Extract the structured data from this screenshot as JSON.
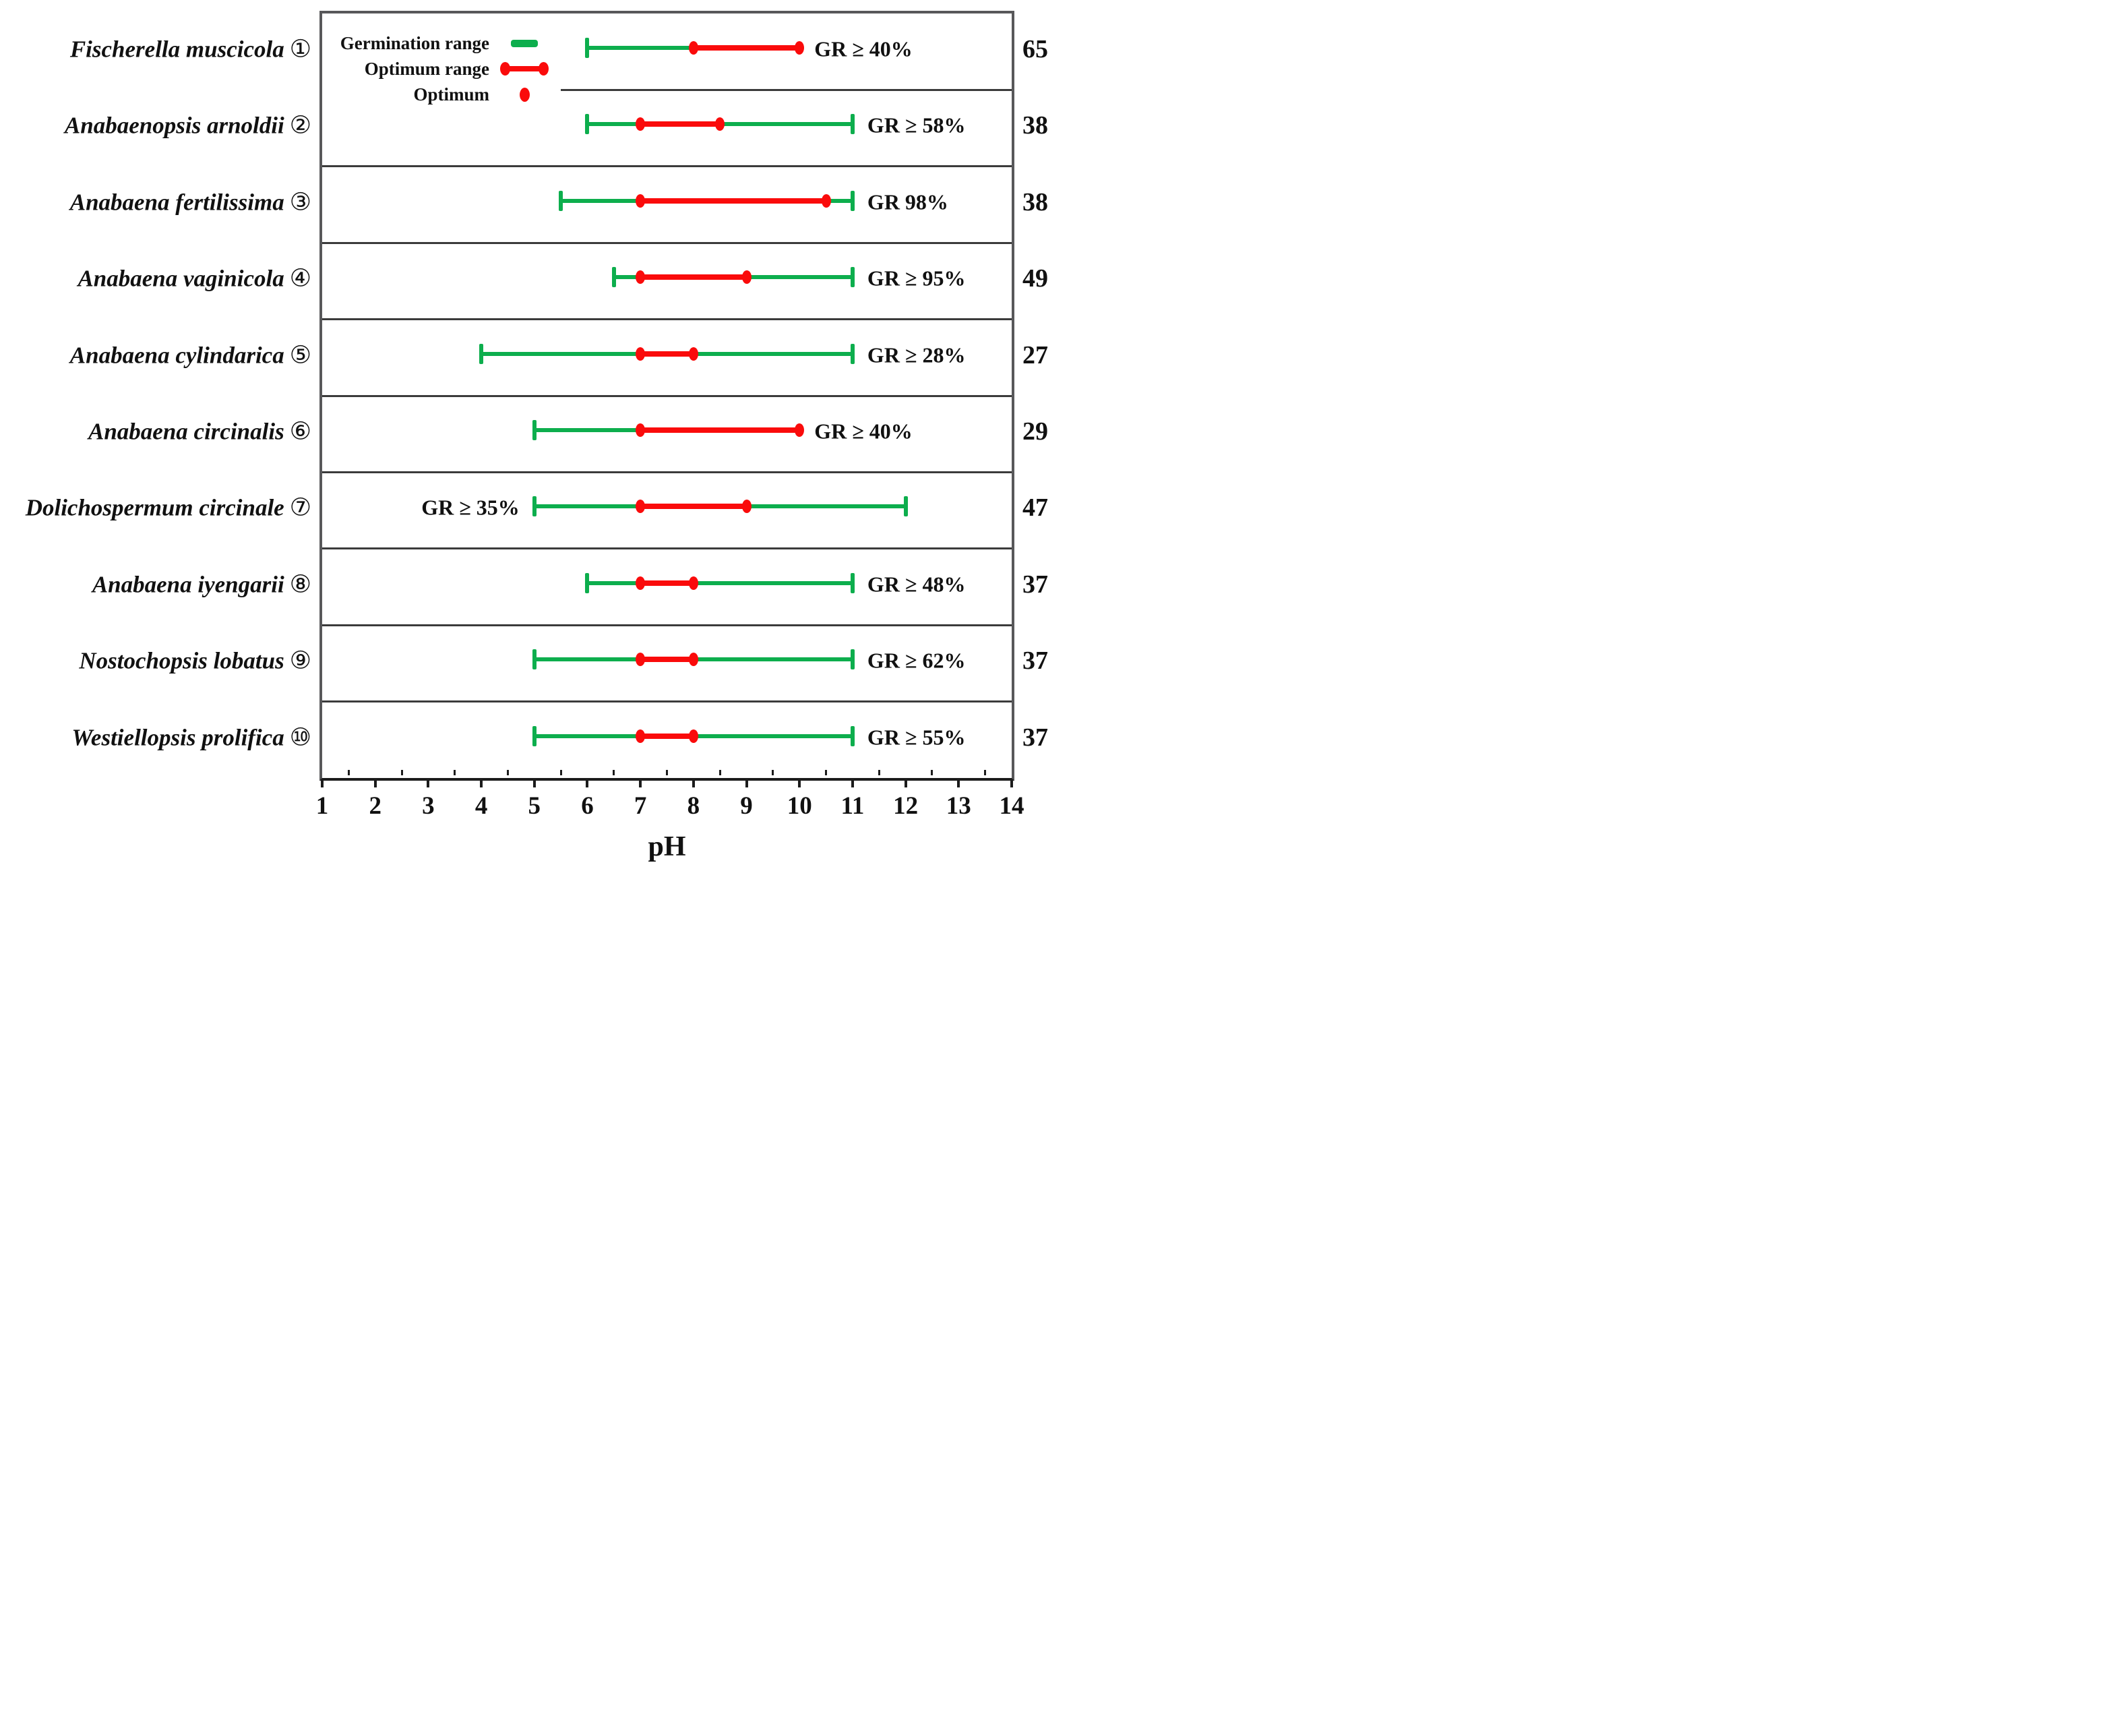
{
  "chart_data": {
    "type": "range_bar",
    "title": "",
    "xlabel": "pH",
    "x_axis": {
      "min": 1,
      "max": 14,
      "major_ticks": [
        1,
        2,
        3,
        4,
        5,
        6,
        7,
        8,
        9,
        10,
        11,
        12,
        13,
        14
      ],
      "minor_tick_step": 0.5,
      "grid": false
    },
    "legend": {
      "position": "top-left-inside",
      "items": [
        {
          "label": "Germination range",
          "swatch": "green-bar"
        },
        {
          "label": "Optimum range",
          "swatch": "red-range"
        },
        {
          "label": "Optimum",
          "swatch": "red-dot"
        }
      ]
    },
    "colors": {
      "germination_range": "#0DAE4D",
      "optimum_range": "#FA0B0B",
      "axis": "#1c1c1c",
      "separator": "#3b3b3b",
      "border": "#58585a"
    },
    "series": [
      {
        "species": "Fischerella muscicola",
        "number_glyph": "①",
        "germination_range": [
          6,
          10
        ],
        "optimum_range": [
          8,
          10
        ],
        "gr_label": "GR ≥ 40%",
        "gr_label_side": "right",
        "right_value": "65"
      },
      {
        "species": "Anabaenopsis arnoldii",
        "number_glyph": "②",
        "germination_range": [
          6,
          11
        ],
        "optimum_range": [
          7,
          8.5
        ],
        "gr_label": "GR ≥ 58%",
        "gr_label_side": "right",
        "right_value": "38"
      },
      {
        "species": "Anabaena fertilissima",
        "number_glyph": "③",
        "germination_range": [
          5.5,
          11
        ],
        "optimum_range": [
          7,
          10.5
        ],
        "gr_label": "GR 98%",
        "gr_label_side": "right",
        "right_value": "38"
      },
      {
        "species": "Anabaena vaginicola",
        "number_glyph": "④",
        "germination_range": [
          6.5,
          11
        ],
        "optimum_range": [
          7,
          9
        ],
        "gr_label": "GR ≥ 95%",
        "gr_label_side": "right",
        "right_value": "49"
      },
      {
        "species": "Anabaena cylindarica",
        "number_glyph": "⑤",
        "germination_range": [
          4,
          11
        ],
        "optimum_range": [
          7,
          8
        ],
        "gr_label": "GR ≥ 28%",
        "gr_label_side": "right",
        "right_value": "27"
      },
      {
        "species": "Anabaena circinalis",
        "number_glyph": "⑥",
        "germination_range": [
          5,
          10
        ],
        "optimum_range": [
          7,
          10
        ],
        "gr_label": "GR ≥ 40%",
        "gr_label_side": "right",
        "right_value": "29"
      },
      {
        "species": "Dolichospermum circinale",
        "number_glyph": "⑦",
        "germination_range": [
          5,
          12
        ],
        "optimum_range": [
          7,
          9
        ],
        "gr_label": "GR ≥ 35%",
        "gr_label_side": "left",
        "right_value": "47"
      },
      {
        "species": "Anabaena iyengarii",
        "number_glyph": "⑧",
        "germination_range": [
          6,
          11
        ],
        "optimum_range": [
          7,
          8
        ],
        "gr_label": "GR ≥ 48%",
        "gr_label_side": "right",
        "right_value": "37"
      },
      {
        "species": "Nostochopsis lobatus",
        "number_glyph": "⑨",
        "germination_range": [
          5,
          11
        ],
        "optimum_range": [
          7,
          8
        ],
        "gr_label": "GR ≥ 62%",
        "gr_label_side": "right",
        "right_value": "37"
      },
      {
        "species": "Westiellopsis prolifica",
        "number_glyph": "⑩",
        "germination_range": [
          5,
          11
        ],
        "optimum_range": [
          7,
          8
        ],
        "gr_label": "GR ≥ 55%",
        "gr_label_side": "right",
        "right_value": "37"
      }
    ]
  }
}
